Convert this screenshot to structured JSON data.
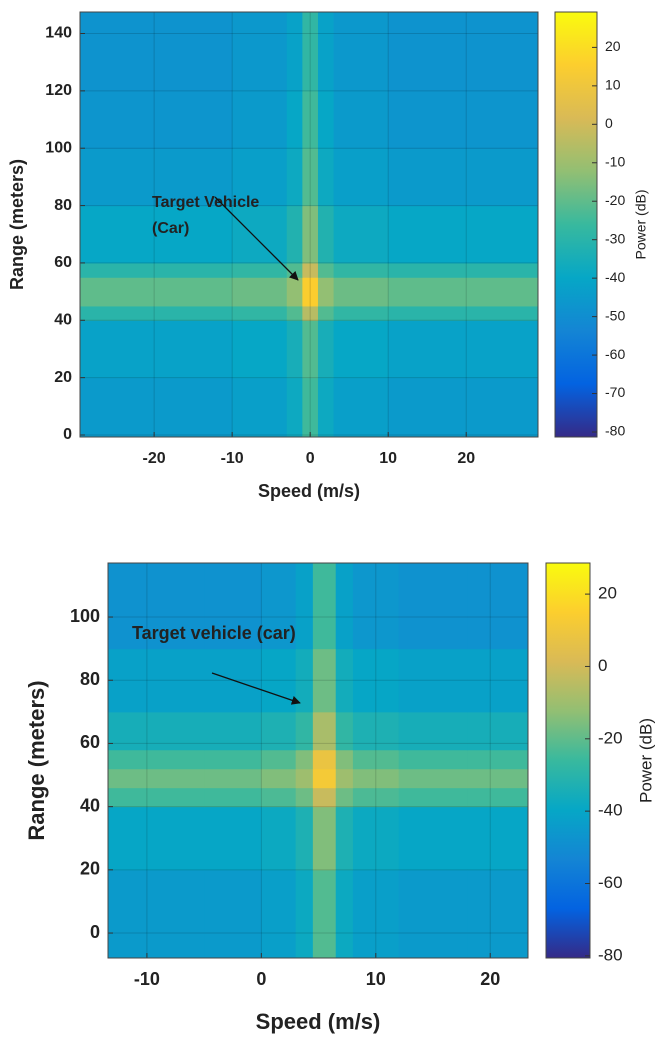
{
  "chart_data": [
    {
      "type": "heatmap",
      "colormap": "parula",
      "grid": true,
      "xlabel": "Speed (m/s)",
      "ylabel": "Range (meters)",
      "colorbar_label": "Power (dB)",
      "annotation": [
        "Target Vehicle",
        "(Car)"
      ],
      "xlim": [
        -29.5,
        29.2
      ],
      "ylim": [
        -0.7,
        147.5
      ],
      "xticks": [
        -20,
        -10,
        0,
        10,
        20
      ],
      "yticks": [
        0,
        20,
        40,
        60,
        80,
        100,
        120,
        140
      ],
      "clim": [
        -81.3,
        29.2
      ],
      "cticks": [
        20,
        10,
        0,
        -10,
        -20,
        -30,
        -40,
        -50,
        -60,
        -70,
        -80
      ],
      "xbins": [
        -29.5,
        -20,
        -10,
        -3,
        -1,
        1,
        3,
        10,
        20,
        29.2
      ],
      "ybins": [
        -0.7,
        20,
        40,
        45,
        55,
        60,
        80,
        100,
        120,
        147.5
      ],
      "z": [
        [
          -45,
          -45,
          -43,
          -38,
          -25,
          -38,
          -43,
          -45,
          -45
        ],
        [
          -42,
          -42,
          -40,
          -35,
          -22,
          -35,
          -40,
          -42,
          -42
        ],
        [
          -30,
          -30,
          -28,
          -22,
          -5,
          -22,
          -28,
          -30,
          -30
        ],
        [
          -20,
          -20,
          -18,
          -12,
          15,
          -12,
          -18,
          -20,
          -20
        ],
        [
          -30,
          -30,
          -28,
          -22,
          -2,
          -22,
          -28,
          -30,
          -30
        ],
        [
          -40,
          -40,
          -38,
          -32,
          -15,
          -32,
          -38,
          -40,
          -40
        ],
        [
          -45,
          -45,
          -43,
          -38,
          -22,
          -38,
          -43,
          -45,
          -45
        ],
        [
          -47,
          -47,
          -45,
          -40,
          -25,
          -40,
          -45,
          -47,
          -47
        ],
        [
          -48,
          -48,
          -46,
          -42,
          -28,
          -42,
          -46,
          -48,
          -48
        ]
      ]
    },
    {
      "type": "heatmap",
      "colormap": "parula",
      "grid": true,
      "xlabel": "Speed (m/s)",
      "ylabel": "Range (meters)",
      "colorbar_label": "Power (dB)",
      "annotation": [
        "Target vehicle (car)"
      ],
      "xlim": [
        -13.4,
        23.3
      ],
      "ylim": [
        -7.9,
        117.1
      ],
      "xticks": [
        -10,
        0,
        10,
        20
      ],
      "yticks": [
        0,
        20,
        40,
        60,
        80,
        100
      ],
      "clim": [
        -80.6,
        28.6
      ],
      "cticks": [
        20,
        0,
        -20,
        -40,
        -60,
        -80
      ],
      "xbins": [
        -13.4,
        -5,
        0,
        3,
        4.5,
        6.5,
        8,
        12,
        18,
        23.3
      ],
      "ybins": [
        -7.9,
        20,
        40,
        46,
        52,
        58,
        70,
        90,
        117.1
      ],
      "z": [
        [
          -45,
          -45,
          -43,
          -38,
          -22,
          -38,
          -43,
          -45,
          -45
        ],
        [
          -40,
          -40,
          -38,
          -33,
          -15,
          -33,
          -38,
          -40,
          -40
        ],
        [
          -25,
          -25,
          -23,
          -18,
          -2,
          -18,
          -23,
          -25,
          -25
        ],
        [
          -18,
          -18,
          -15,
          -10,
          12,
          -10,
          -15,
          -18,
          -18
        ],
        [
          -25,
          -25,
          -22,
          -15,
          8,
          -15,
          -22,
          -25,
          -25
        ],
        [
          -35,
          -35,
          -33,
          -28,
          -8,
          -28,
          -33,
          -35,
          -35
        ],
        [
          -42,
          -42,
          -40,
          -36,
          -18,
          -36,
          -40,
          -42,
          -42
        ],
        [
          -48,
          -48,
          -46,
          -42,
          -25,
          -42,
          -46,
          -48,
          -48
        ]
      ]
    }
  ]
}
